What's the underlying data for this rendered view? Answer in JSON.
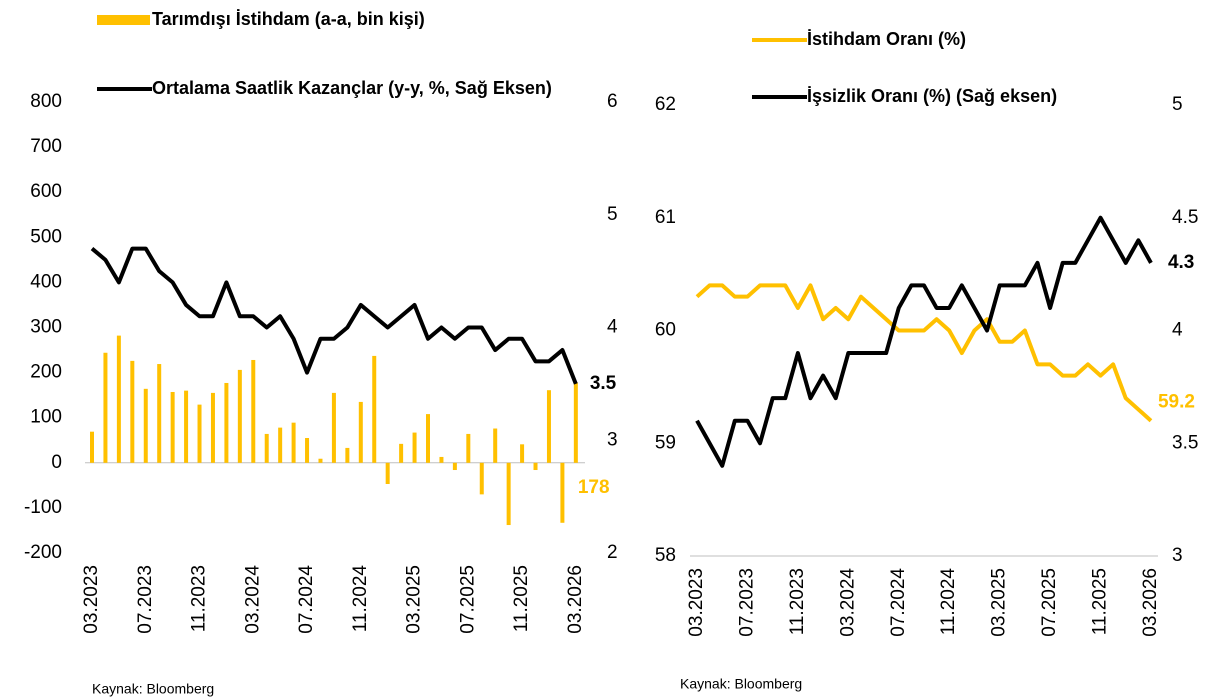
{
  "chart_data": [
    {
      "type": "combo",
      "categories": [
        "03.2023",
        null,
        null,
        null,
        "07.2023",
        null,
        null,
        null,
        "11.2023",
        null,
        null,
        null,
        "03.2024",
        null,
        null,
        null,
        "07.2024",
        null,
        null,
        null,
        "11.2024",
        null,
        null,
        null,
        "03.2025",
        null,
        null,
        null,
        "07.2025",
        null,
        null,
        null,
        "11.2025",
        null,
        null,
        null,
        "03.2026"
      ],
      "series": [
        {
          "name": "Tarımdışı İstihdam (a-a, bin kişi)",
          "type": "bar",
          "color": "#FFC000",
          "values": [
            69,
            244,
            282,
            226,
            164,
            219,
            157,
            160,
            129,
            155,
            177,
            206,
            228,
            64,
            78,
            89,
            55,
            9,
            155,
            33,
            135,
            237,
            -47,
            42,
            67,
            108,
            13,
            -16,
            64,
            -70,
            76,
            -138,
            41,
            -16,
            161,
            -133,
            178
          ]
        },
        {
          "name": "Ortalama Saatlik Kazançlar (y-y, %, Sağ Eksen)",
          "type": "line",
          "color": "#000000",
          "axis": "y2",
          "values": [
            4.7,
            4.6,
            4.4,
            4.7,
            4.7,
            4.5,
            4.4,
            4.2,
            4.1,
            4.1,
            4.4,
            4.1,
            4.1,
            4.0,
            4.1,
            3.9,
            3.6,
            3.9,
            3.9,
            4.0,
            4.2,
            4.1,
            4.0,
            4.1,
            4.2,
            3.9,
            4.0,
            3.9,
            4.0,
            4.0,
            3.8,
            3.9,
            3.9,
            3.7,
            3.7,
            3.8,
            3.5
          ]
        }
      ],
      "ylim": [
        -200,
        800
      ],
      "yticks": [
        -200,
        -100,
        0,
        100,
        200,
        300,
        400,
        500,
        600,
        700,
        800
      ],
      "y2lim": [
        2,
        6
      ],
      "y2ticks": [
        2,
        3,
        4,
        5,
        6
      ],
      "end_labels": true,
      "grid": false,
      "source": "Kaynak: Bloomberg"
    },
    {
      "type": "line",
      "categories": [
        "03.2023",
        null,
        null,
        null,
        "07.2023",
        null,
        null,
        null,
        "11.2023",
        null,
        null,
        null,
        "03.2024",
        null,
        null,
        null,
        "07.2024",
        null,
        null,
        null,
        "11.2024",
        null,
        null,
        null,
        "03.2025",
        null,
        null,
        null,
        "07.2025",
        null,
        null,
        null,
        "11.2025",
        null,
        null,
        null,
        "03.2026"
      ],
      "series": [
        {
          "name": "İstihdam Oranı (%)",
          "type": "line",
          "color": "#FFC000",
          "values": [
            60.3,
            60.4,
            60.4,
            60.3,
            60.3,
            60.4,
            60.4,
            60.4,
            60.2,
            60.4,
            60.1,
            60.2,
            60.1,
            60.3,
            60.2,
            60.1,
            60.0,
            60.0,
            60.0,
            60.1,
            60.0,
            59.8,
            60.0,
            60.1,
            59.9,
            59.9,
            60.0,
            59.7,
            59.7,
            59.6,
            59.6,
            59.7,
            59.6,
            59.7,
            59.4,
            59.3,
            59.2
          ]
        },
        {
          "name": "İşsizlik Oranı (%) (Sağ eksen)",
          "type": "line",
          "color": "#000000",
          "axis": "y2",
          "values": [
            3.6,
            3.5,
            3.4,
            3.6,
            3.6,
            3.5,
            3.7,
            3.7,
            3.9,
            3.7,
            3.8,
            3.7,
            3.9,
            3.9,
            3.9,
            3.9,
            4.1,
            4.2,
            4.2,
            4.1,
            4.1,
            4.2,
            4.1,
            4.0,
            4.2,
            4.2,
            4.2,
            4.3,
            4.1,
            4.3,
            4.3,
            4.4,
            4.5,
            4.4,
            4.3,
            4.4,
            4.3
          ]
        }
      ],
      "ylim": [
        58,
        62
      ],
      "yticks": [
        58,
        59,
        60,
        61,
        62
      ],
      "y2lim": [
        3,
        5
      ],
      "y2ticks": [
        3,
        3.5,
        4,
        4.5,
        5
      ],
      "end_labels": true,
      "grid": false,
      "source": "Kaynak: Bloomberg"
    }
  ]
}
